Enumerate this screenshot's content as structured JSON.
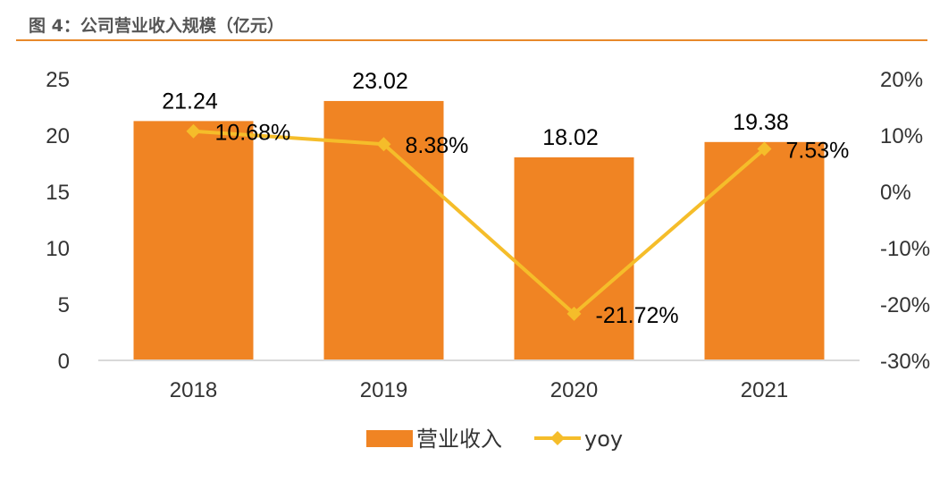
{
  "figure": {
    "title": "图 4：公司营业收入规模（亿元）"
  },
  "colors": {
    "bar": "#f08423",
    "line": "#f5bd2a",
    "axis": "#d9d9d9",
    "title_rule": "#e8892b"
  },
  "chart_data": {
    "type": "bar",
    "categories": [
      "2018",
      "2019",
      "2020",
      "2021"
    ],
    "series": [
      {
        "name": "营业收入",
        "type": "bar",
        "axis": "left",
        "values": [
          21.24,
          23.02,
          18.02,
          19.38
        ],
        "labels": [
          "21.24",
          "23.02",
          "18.02",
          "19.38"
        ]
      },
      {
        "name": "yoy",
        "type": "line",
        "axis": "right",
        "values": [
          10.68,
          8.38,
          -21.72,
          7.53
        ],
        "labels": [
          "10.68%",
          "8.38%",
          "-21.72%",
          "7.53%"
        ]
      }
    ],
    "y_left": {
      "range": [
        0,
        25
      ],
      "ticks": [
        "0",
        "5",
        "10",
        "15",
        "20",
        "25"
      ]
    },
    "y_right": {
      "range": [
        -30,
        20
      ],
      "ticks": [
        "-30%",
        "-20%",
        "-10%",
        "0%",
        "10%",
        "20%"
      ]
    },
    "legend": {
      "position": "bottom",
      "entries": [
        "营业收入",
        "yoy"
      ]
    }
  }
}
